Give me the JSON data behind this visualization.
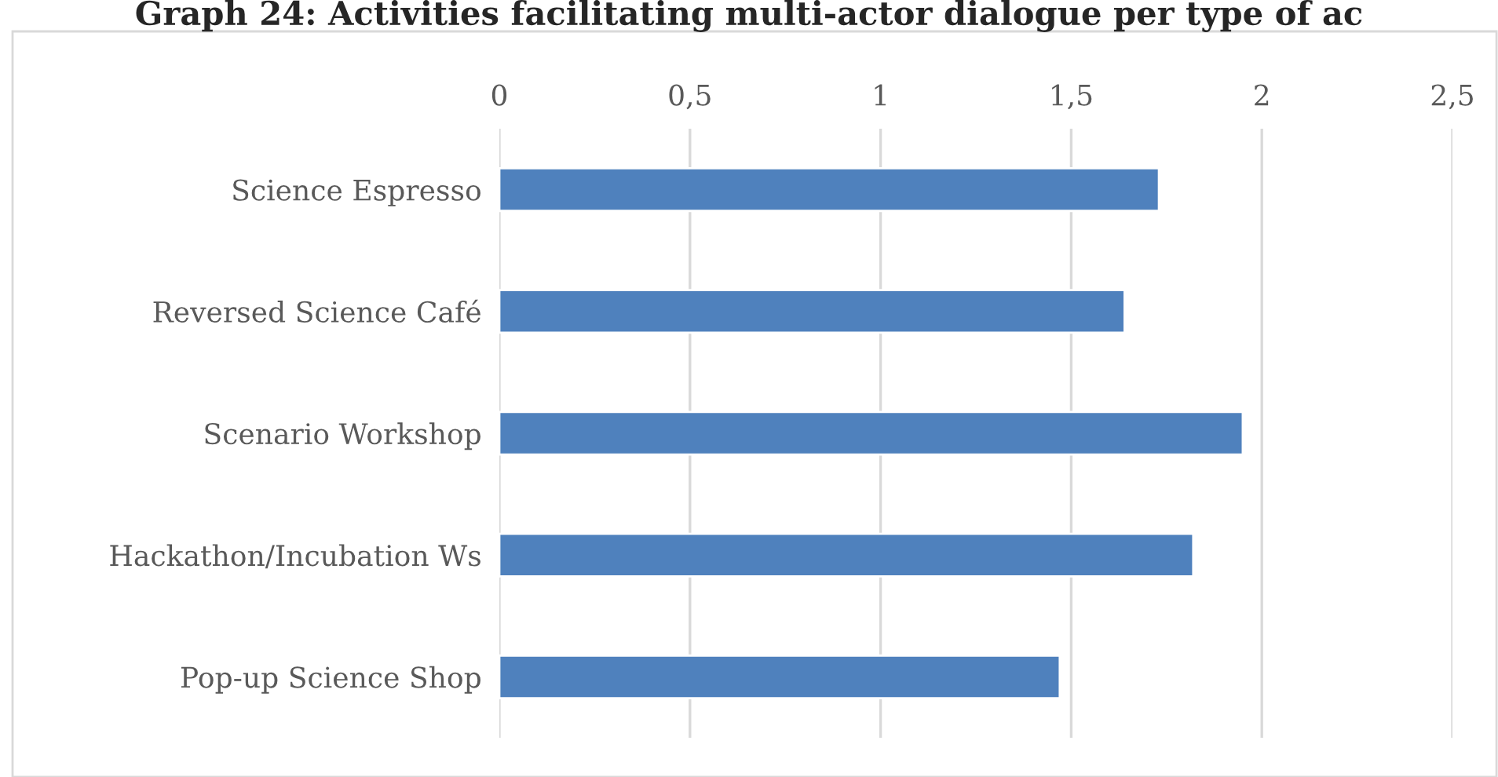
{
  "chart_data": {
    "type": "bar",
    "orientation": "horizontal",
    "title": "Graph 24: Activities facilitating multi-actor dialogue per type of ac",
    "categories": [
      "Science Espresso",
      "Reversed Science Café",
      "Scenario Workshop",
      "Hackathon/Incubation Ws",
      "Pop-up Science Shop"
    ],
    "values": [
      1.73,
      1.64,
      1.95,
      1.82,
      1.47
    ],
    "color": "#4f81bd",
    "xlim": [
      0,
      2.5
    ],
    "xticks": [
      0,
      {
        "value": 0.5,
        "label": "0,5"
      },
      1,
      {
        "value": 1.5,
        "label": "1,5"
      },
      2,
      {
        "value": 2.5,
        "label": "2,5"
      }
    ],
    "grid": "x",
    "legend": false
  }
}
